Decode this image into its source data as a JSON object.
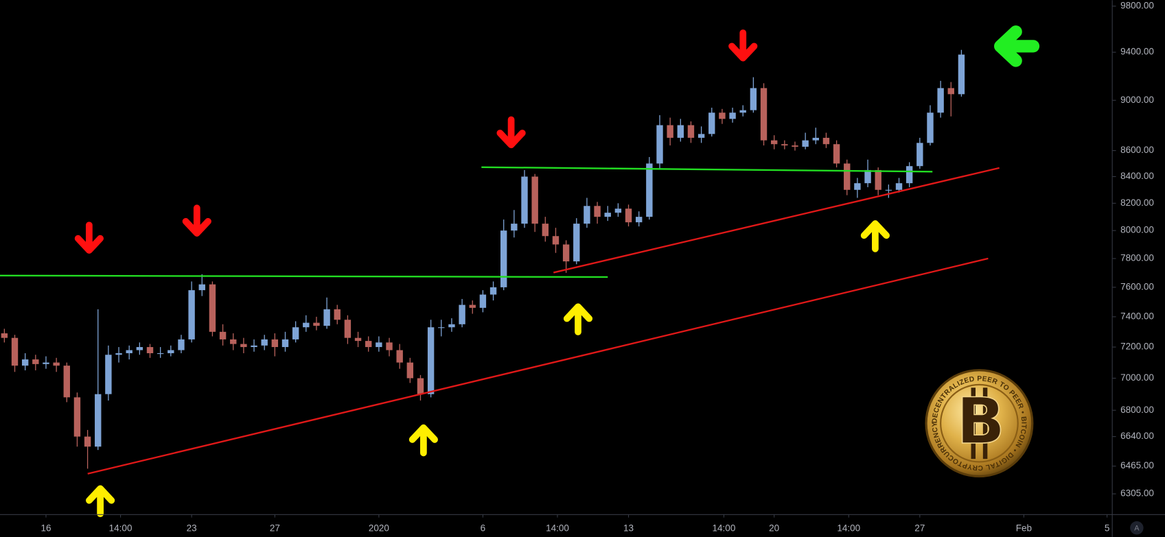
{
  "chart_data": {
    "type": "candlestick",
    "log_scale": true,
    "grid": false,
    "up_color": "#7ea4d6",
    "down_color": "#b8625c",
    "xlim": [
      13.79,
      67.25
    ],
    "ylim": [
      6188,
      9853
    ],
    "xticks": [
      16,
      {
        "value": 19.583,
        "label": "14:00"
      },
      23,
      27,
      {
        "value": 32,
        "label": "2020"
      },
      {
        "value": 37,
        "label": "6"
      },
      {
        "value": 40.583,
        "label": "14:00"
      },
      {
        "value": 44,
        "label": "13"
      },
      {
        "value": 48.583,
        "label": "14:00"
      },
      {
        "value": 51,
        "label": "20"
      },
      {
        "value": 54.583,
        "label": "14:00"
      },
      {
        "value": 58,
        "label": "27"
      },
      {
        "value": 63,
        "label": "Feb"
      },
      {
        "value": 67,
        "label": "5"
      }
    ],
    "yticks": [
      {
        "value": 6305,
        "label": "6305.00"
      },
      {
        "value": 6465,
        "label": "6465.00"
      },
      {
        "value": 6640,
        "label": "6640.00"
      },
      {
        "value": 6800,
        "label": "6800.00"
      },
      {
        "value": 7000,
        "label": "7000.00"
      },
      {
        "value": 7200,
        "label": "7200.00"
      },
      {
        "value": 7400,
        "label": "7400.00"
      },
      {
        "value": 7600,
        "label": "7600.00"
      },
      {
        "value": 7800,
        "label": "7800.00"
      },
      {
        "value": 8000,
        "label": "8000.00"
      },
      {
        "value": 8200,
        "label": "8200.00"
      },
      {
        "value": 8400,
        "label": "8400.00"
      },
      {
        "value": 8600,
        "label": "8600.00"
      },
      {
        "value": 9000,
        "label": "9000.00"
      },
      {
        "value": 9400,
        "label": "9400.00"
      },
      {
        "value": 9800,
        "label": "9800.00"
      }
    ],
    "x": [
      14,
      14.5,
      15,
      15.5,
      16,
      16.5,
      17,
      17.5,
      18,
      18.5,
      19,
      19.5,
      20,
      20.5,
      21,
      21.5,
      22,
      22.5,
      23,
      23.5,
      24,
      24.5,
      25,
      25.5,
      26,
      26.5,
      27,
      27.5,
      28,
      28.5,
      29,
      29.5,
      30,
      30.5,
      31,
      31.5,
      32,
      32.5,
      33,
      33.5,
      34,
      34.5,
      35,
      35.5,
      36,
      36.5,
      37,
      37.5,
      38,
      38.5,
      39,
      39.5,
      40,
      40.5,
      41,
      41.5,
      42,
      42.5,
      43,
      43.5,
      44,
      44.5,
      45,
      45.5,
      46,
      46.5,
      47,
      47.5,
      48,
      48.5,
      49,
      49.5,
      50,
      50.5,
      51,
      51.5,
      52,
      52.5,
      53,
      53.5,
      54,
      54.5,
      55,
      55.5,
      56,
      56.5,
      57,
      57.5,
      58,
      58.5,
      59,
      59.5,
      60
    ],
    "open": [
      7290,
      7260,
      7080,
      7120,
      7090,
      7100,
      7080,
      6880,
      6640,
      6580,
      6900,
      7150,
      7160,
      7180,
      7200,
      7160,
      7160,
      7180,
      7250,
      7580,
      7620,
      7300,
      7250,
      7220,
      7200,
      7210,
      7250,
      7200,
      7250,
      7330,
      7360,
      7340,
      7450,
      7380,
      7260,
      7240,
      7200,
      7230,
      7180,
      7100,
      7000,
      6900,
      7330,
      7330,
      7350,
      7480,
      7460,
      7550,
      7600,
      8000,
      8050,
      8400,
      8050,
      7960,
      7900,
      7780,
      8050,
      8180,
      8100,
      8130,
      8160,
      8060,
      8100,
      8500,
      8800,
      8700,
      8800,
      8700,
      8730,
      8900,
      8850,
      8900,
      8920,
      9100,
      8680,
      8650,
      8640,
      8630,
      8680,
      8700,
      8650,
      8500,
      8300,
      8350,
      8450,
      8300,
      8300,
      8350,
      8480,
      8660,
      8900,
      9100,
      9050
    ],
    "high": [
      7320,
      7280,
      7160,
      7150,
      7140,
      7130,
      7100,
      6910,
      6680,
      7450,
      7210,
      7200,
      7210,
      7230,
      7220,
      7200,
      7210,
      7280,
      7640,
      7690,
      7640,
      7350,
      7290,
      7260,
      7250,
      7280,
      7290,
      7300,
      7370,
      7410,
      7400,
      7530,
      7480,
      7410,
      7300,
      7270,
      7270,
      7260,
      7220,
      7130,
      7020,
      7380,
      7380,
      7390,
      7520,
      7510,
      7580,
      7640,
      8080,
      8150,
      8450,
      8420,
      8100,
      8020,
      7930,
      8090,
      8240,
      8210,
      8180,
      8200,
      8190,
      8140,
      8550,
      8880,
      8860,
      8850,
      8830,
      8790,
      8940,
      8930,
      8940,
      8960,
      9190,
      9140,
      8720,
      8680,
      8670,
      8740,
      8780,
      8740,
      8680,
      8530,
      8390,
      8530,
      8470,
      8340,
      8390,
      8510,
      8700,
      8960,
      9160,
      9150,
      9420
    ],
    "low": [
      7230,
      7040,
      7050,
      7050,
      7060,
      7040,
      6850,
      6580,
      6450,
      6560,
      6860,
      7100,
      7120,
      7150,
      7130,
      7130,
      7140,
      7160,
      7230,
      7540,
      7270,
      7210,
      7180,
      7160,
      7170,
      7180,
      7140,
      7170,
      7230,
      7300,
      7310,
      7320,
      7350,
      7220,
      7200,
      7170,
      7170,
      7140,
      7060,
      6970,
      6860,
      6880,
      7270,
      7300,
      7330,
      7420,
      7430,
      7510,
      7580,
      7950,
      8020,
      7990,
      7920,
      7840,
      7700,
      7760,
      8020,
      8050,
      8070,
      8100,
      8030,
      8030,
      8080,
      8460,
      8640,
      8670,
      8660,
      8660,
      8710,
      8810,
      8820,
      8870,
      8900,
      8640,
      8610,
      8610,
      8600,
      8610,
      8650,
      8620,
      8470,
      8260,
      8240,
      8320,
      8260,
      8240,
      8280,
      8320,
      8460,
      8640,
      8860,
      8870,
      9030
    ],
    "close": [
      7260,
      7080,
      7120,
      7090,
      7100,
      7080,
      6880,
      6640,
      6580,
      6900,
      7150,
      7160,
      7180,
      7200,
      7160,
      7160,
      7180,
      7250,
      7580,
      7620,
      7300,
      7250,
      7220,
      7200,
      7210,
      7250,
      7200,
      7250,
      7330,
      7360,
      7340,
      7450,
      7380,
      7260,
      7240,
      7200,
      7230,
      7180,
      7100,
      7000,
      6900,
      7330,
      7330,
      7350,
      7480,
      7460,
      7550,
      7600,
      8000,
      8050,
      8400,
      8050,
      7960,
      7900,
      7780,
      8050,
      8180,
      8100,
      8130,
      8160,
      8060,
      8100,
      8500,
      8800,
      8700,
      8800,
      8700,
      8730,
      8900,
      8850,
      8900,
      8920,
      9100,
      8680,
      8650,
      8640,
      8630,
      8680,
      8700,
      8650,
      8500,
      8300,
      8350,
      8450,
      8300,
      8300,
      8350,
      8480,
      8660,
      8900,
      9100,
      9050,
      9380
    ]
  },
  "logo": {
    "symbol": "B",
    "ring_text": "DECENTRALIZED PEER TO PEER • BITCOIN • DIGITAL CRYPTOCURRENCY •"
  },
  "controls": {
    "auto_scale": "A"
  }
}
